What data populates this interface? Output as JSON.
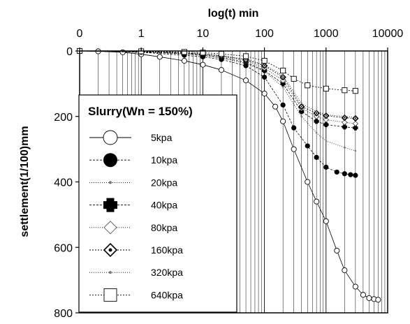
{
  "chart_data": {
    "type": "line",
    "title": "",
    "xlabel": "log(t) min",
    "ylabel": "settlement(1/100)mm",
    "x_scale": "log",
    "x_axis_position": "top",
    "x_tick_labels": [
      "0",
      "1",
      "10",
      "100",
      "1000",
      "10000"
    ],
    "x_tick_values": [
      0.1,
      1,
      10,
      100,
      1000,
      10000
    ],
    "xlim": [
      0.1,
      10000
    ],
    "y_tick_labels": [
      "0",
      "200",
      "400",
      "600",
      "800"
    ],
    "y_tick_values": [
      0,
      200,
      400,
      600,
      800
    ],
    "ylim": [
      0,
      800
    ],
    "y_inverted": true,
    "grid": "vertical log gridlines",
    "legend": {
      "title": "Slurry(Wn = 150%)",
      "position": "bottom-left"
    },
    "series": [
      {
        "name": "5kpa",
        "marker": "open-circle",
        "x": [
          0.1,
          0.2,
          0.5,
          1,
          2,
          5,
          10,
          20,
          50,
          100,
          150,
          200,
          300,
          500,
          700,
          1000,
          1500,
          2000,
          3000,
          4000,
          5000,
          6000,
          7000
        ],
        "y": [
          0,
          1,
          4,
          10,
          18,
          30,
          42,
          58,
          90,
          130,
          170,
          215,
          300,
          400,
          460,
          520,
          610,
          670,
          720,
          745,
          755,
          758,
          760
        ]
      },
      {
        "name": "10kpa",
        "marker": "filled-circle",
        "x": [
          0.1,
          1,
          5,
          10,
          20,
          50,
          100,
          200,
          300,
          500,
          700,
          1000,
          1500,
          2000,
          2500,
          3000
        ],
        "y": [
          0,
          4,
          13,
          18,
          26,
          45,
          80,
          165,
          235,
          290,
          325,
          355,
          370,
          375,
          378,
          380
        ]
      },
      {
        "name": "20kpa",
        "marker": "small-dot",
        "x": [
          0.1,
          1,
          5,
          10,
          20,
          50,
          100,
          200,
          400,
          700,
          1000,
          2000,
          3000
        ],
        "y": [
          0,
          3,
          9,
          14,
          22,
          38,
          62,
          110,
          200,
          250,
          275,
          295,
          305
        ]
      },
      {
        "name": "40kpa",
        "marker": "filled-plus",
        "x": [
          0.1,
          1,
          5,
          10,
          20,
          50,
          100,
          200,
          400,
          700,
          1000,
          2000,
          3000
        ],
        "y": [
          0,
          3,
          8,
          12,
          20,
          35,
          60,
          100,
          185,
          215,
          225,
          232,
          235
        ]
      },
      {
        "name": "80kpa",
        "marker": "open-diamond",
        "x": [
          0.1,
          1,
          5,
          10,
          20,
          50,
          100,
          200,
          400,
          700,
          1000,
          2000,
          3000
        ],
        "y": [
          0,
          2,
          7,
          10,
          17,
          30,
          52,
          90,
          175,
          200,
          210,
          218,
          222
        ]
      },
      {
        "name": "160kpa",
        "marker": "dotted-diamond",
        "x": [
          0.1,
          1,
          5,
          10,
          20,
          50,
          100,
          200,
          400,
          700,
          1000,
          2000,
          3000
        ],
        "y": [
          0,
          2,
          6,
          9,
          15,
          27,
          45,
          80,
          170,
          190,
          198,
          204,
          206
        ]
      },
      {
        "name": "320kpa",
        "marker": "small-dot",
        "x": [
          0.1,
          1,
          5,
          10,
          20,
          50,
          100,
          200,
          400,
          700,
          1000,
          2000,
          3000
        ],
        "y": [
          0,
          2,
          6,
          9,
          14,
          25,
          42,
          75,
          160,
          185,
          195,
          200,
          203
        ]
      },
      {
        "name": "640kpa",
        "marker": "open-square",
        "x": [
          0.1,
          1,
          5,
          10,
          20,
          50,
          100,
          200,
          300,
          500,
          1000,
          2000,
          3000
        ],
        "y": [
          0,
          1,
          3,
          5,
          9,
          16,
          30,
          60,
          85,
          105,
          115,
          120,
          122
        ]
      }
    ]
  }
}
